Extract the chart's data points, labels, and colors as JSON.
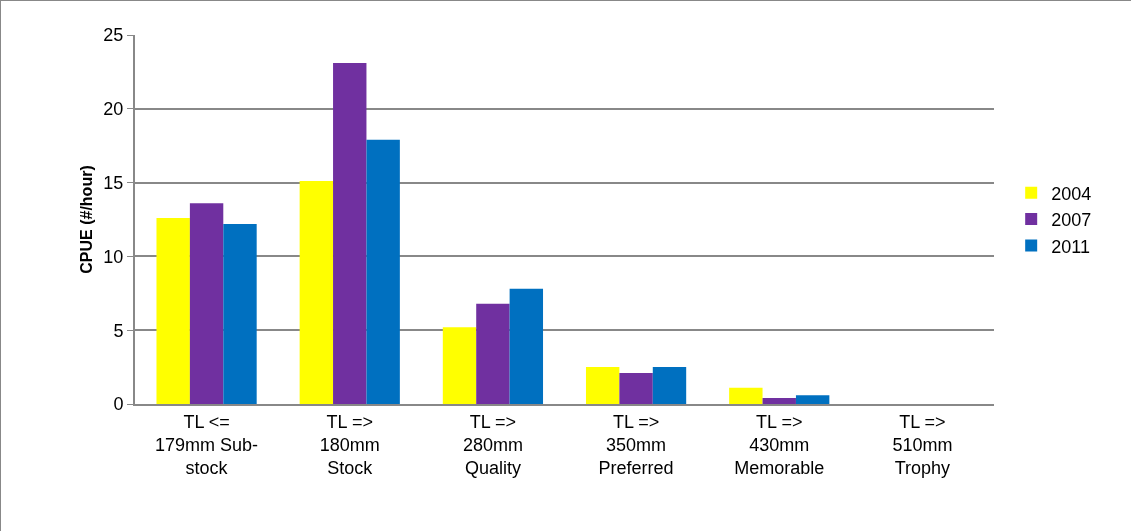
{
  "chart_data": {
    "type": "bar",
    "ylabel": "CPUE (#/hour)",
    "categories": [
      "TL <=\n179mm Sub-\nstock",
      "TL =>\n180mm\nStock",
      "TL =>\n280mm\nQuality",
      "TL =>\n350mm\nPreferred",
      "TL =>\n430mm\nMemorable",
      "TL =>\n510mm\nTrophy"
    ],
    "series": [
      {
        "name": "2004",
        "color": "#ffff00",
        "values": [
          12.6,
          15.1,
          5.2,
          2.5,
          1.1,
          0
        ]
      },
      {
        "name": "2007",
        "color": "#7030a0",
        "values": [
          13.6,
          23.1,
          6.8,
          2.1,
          0.4,
          0
        ]
      },
      {
        "name": "2011",
        "color": "#0070c0",
        "values": [
          12.2,
          17.9,
          7.8,
          2.5,
          0.6,
          0
        ]
      }
    ],
    "ylim": [
      0,
      25
    ],
    "yticks": [
      0,
      5,
      10,
      15,
      20,
      25
    ],
    "grid": "y",
    "legend": "right"
  }
}
